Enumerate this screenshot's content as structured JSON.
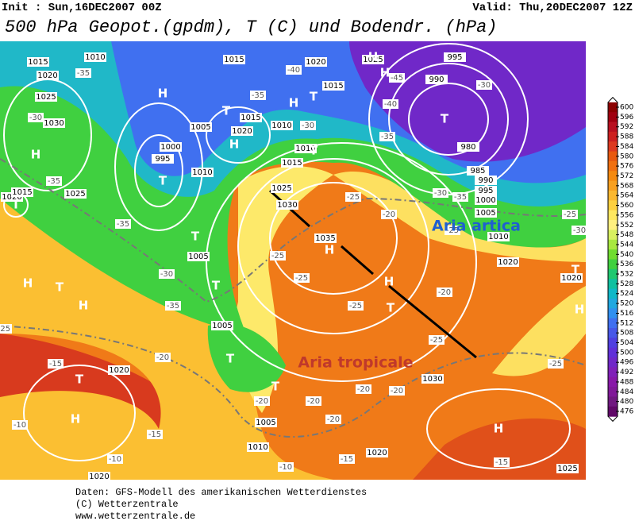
{
  "header": {
    "init": "Init : Sun,16DEC2007 00Z",
    "valid": "Valid: Thu,20DEC2007 12Z",
    "title": "500 hPa Geopot.(gpdm), T (C) und Bodendr. (hPa)"
  },
  "map": {
    "annotations": [
      {
        "text": "Aria artica",
        "color": "#1f5fd0"
      },
      {
        "text": "Aria tropicale",
        "color": "#c0392b"
      }
    ],
    "pressure_centers": [
      "H",
      "H",
      "T",
      "H",
      "T",
      "T",
      "T",
      "H",
      "T",
      "H",
      "T",
      "T",
      "H",
      "H",
      "T",
      "T",
      "H",
      "H",
      "T",
      "H",
      "H",
      "T",
      "T",
      "H",
      "T",
      "T",
      "H"
    ],
    "isobar_labels": [
      "1015",
      "1010",
      "1020",
      "1025",
      "1030",
      "1015",
      "1020",
      "1015",
      "1005",
      "1020",
      "1015",
      "1010",
      "1000",
      "995",
      "1010",
      "1010",
      "1015",
      "1025",
      "1030",
      "1035",
      "1020",
      "1015",
      "1025",
      "1005",
      "1005",
      "1020",
      "1005",
      "1010",
      "1020",
      "1030",
      "1025",
      "995",
      "990",
      "980",
      "985",
      "990",
      "995",
      "1000",
      "1005",
      "1010",
      "1020",
      "1020",
      "1020",
      "1025"
    ],
    "temperature_labels": [
      "-35",
      "-30",
      "-35",
      "-35",
      "-30",
      "-35",
      "-25",
      "-20",
      "-15",
      "-10",
      "-10",
      "-15",
      "-20",
      "-20",
      "-20",
      "-20",
      "-20",
      "-15",
      "-10",
      "-15",
      "-25",
      "-20",
      "-25",
      "-25",
      "-25",
      "-25",
      "-20",
      "-25",
      "-30",
      "-35",
      "-30",
      "-40",
      "-45",
      "-35",
      "-30",
      "-35",
      "-40",
      "-25",
      "-25",
      "-30"
    ]
  },
  "colorbar": {
    "ticks": [
      600,
      596,
      592,
      588,
      584,
      580,
      576,
      572,
      568,
      564,
      560,
      556,
      552,
      548,
      544,
      540,
      536,
      532,
      528,
      524,
      520,
      516,
      512,
      508,
      504,
      500,
      496,
      492,
      488,
      484,
      480,
      476
    ],
    "colors": [
      "#8b0000",
      "#a00010",
      "#b81020",
      "#cc2020",
      "#dd3a20",
      "#e85a10",
      "#f07010",
      "#f58a10",
      "#f8a020",
      "#fbb830",
      "#fdd040",
      "#ffe860",
      "#fff080",
      "#d8f060",
      "#a8e840",
      "#70dc30",
      "#40d040",
      "#20c870",
      "#10c0a0",
      "#10b8c8",
      "#20a8e0",
      "#3090f0",
      "#4070f0",
      "#4858e8",
      "#5040e0",
      "#6030d8",
      "#7028c8",
      "#8020b8",
      "#8818a8",
      "#801898",
      "#701880",
      "#600868"
    ]
  },
  "footer": [
    "Daten: GFS-Modell des amerikanischen Wetterdienstes",
    "(C) Wetterzentrale",
    "www.wetterzentrale.de"
  ]
}
